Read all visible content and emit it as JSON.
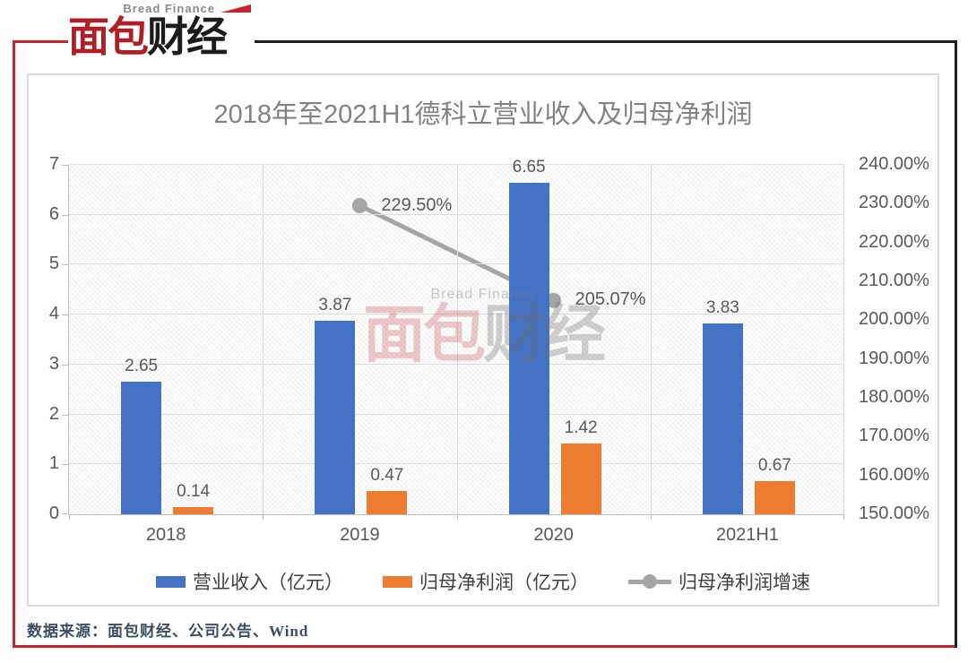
{
  "logo": {
    "brand_en": "Bread Finance",
    "zh_red": "面包",
    "zh_dark": "财经"
  },
  "watermark": {
    "en": "Bread Finance",
    "zh_red": "面包",
    "zh_gray": "财经"
  },
  "source_note": "数据来源：面包财经、公司公告、Wind",
  "chart_data": {
    "type": "combo-bar-line",
    "title": "2018年至2021H1德科立营业收入及归母净利润",
    "categories": [
      "2018",
      "2019",
      "2020",
      "2021H1"
    ],
    "series": [
      {
        "name": "营业收入（亿元）",
        "type": "bar",
        "axis": "left",
        "color": "#4472C4",
        "values": [
          2.65,
          3.87,
          6.65,
          3.83
        ],
        "labels": [
          "2.65",
          "3.87",
          "6.65",
          "3.83"
        ]
      },
      {
        "name": "归母净利润（亿元）",
        "type": "bar",
        "axis": "left",
        "color": "#ED7D31",
        "values": [
          0.14,
          0.47,
          1.42,
          0.67
        ],
        "labels": [
          "0.14",
          "0.47",
          "1.42",
          "0.67"
        ]
      },
      {
        "name": "归母净利润增速",
        "type": "line",
        "axis": "right",
        "color": "#A5A5A5",
        "values": [
          null,
          229.5,
          205.07,
          null
        ],
        "labels": [
          null,
          "229.50%",
          "205.07%",
          null
        ]
      }
    ],
    "left_axis": {
      "min": 0,
      "max": 7,
      "step": 1,
      "ticks": [
        "0",
        "1",
        "2",
        "3",
        "4",
        "5",
        "6",
        "7"
      ]
    },
    "right_axis": {
      "min": 150,
      "max": 240,
      "step": 10,
      "ticks": [
        "240.00%",
        "230.00%",
        "220.00%",
        "210.00%",
        "200.00%",
        "190.00%",
        "180.00%",
        "170.00%",
        "160.00%",
        "150.00%"
      ]
    },
    "grid": true,
    "legend_position": "bottom"
  }
}
